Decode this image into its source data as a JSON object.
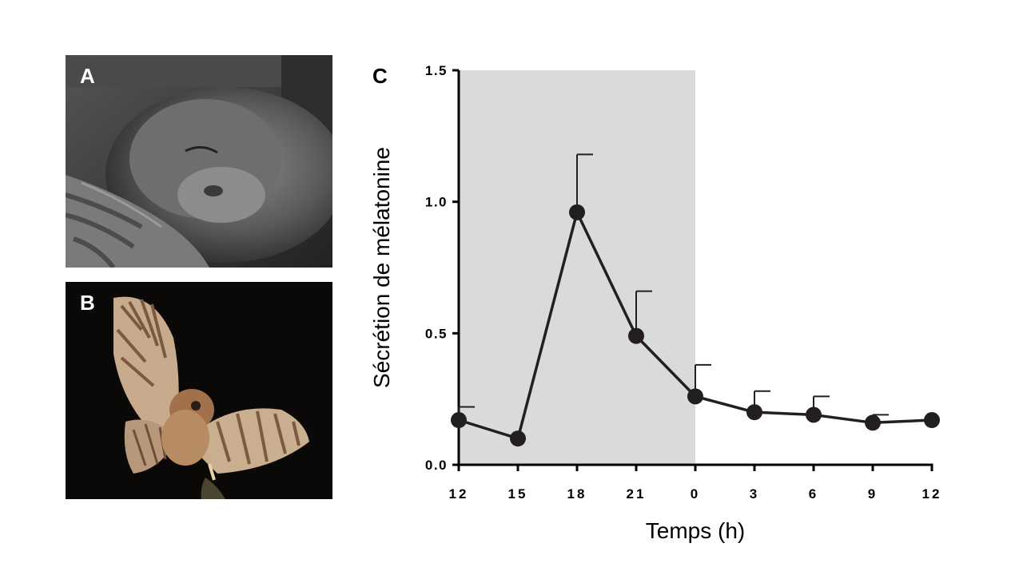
{
  "panels": {
    "a_label": "A",
    "b_label": "B",
    "c_label": "C"
  },
  "photos": {
    "a": "sleeping-macaque-photo",
    "b": "owl-in-flight-photo"
  },
  "colors": {
    "night_shade": "#d9dadc",
    "line": "#231f20",
    "axis": "#000000"
  },
  "chart_data": {
    "type": "line",
    "title": "",
    "xlabel": "Temps (h)",
    "ylabel": "Sécrétion de mélatonine",
    "ylim": [
      0,
      1.5
    ],
    "yticks": [
      "0.0",
      "0.5",
      "1.0",
      "1.5"
    ],
    "x_tick_labels": [
      "12",
      "15",
      "18",
      "21",
      "0",
      "3",
      "6",
      "9",
      "12"
    ],
    "night_shading": {
      "from_tick": "12",
      "to_tick": "0"
    },
    "grid": false,
    "legend": "none",
    "series": [
      {
        "points": [
          {
            "x": "12",
            "y": 0.17,
            "err": 0.05
          },
          {
            "x": "15",
            "y": 0.1,
            "err": 0.0
          },
          {
            "x": "18",
            "y": 0.96,
            "err": 0.22
          },
          {
            "x": "21",
            "y": 0.49,
            "err": 0.17
          },
          {
            "x": "0",
            "y": 0.26,
            "err": 0.12
          },
          {
            "x": "3",
            "y": 0.2,
            "err": 0.08
          },
          {
            "x": "6",
            "y": 0.19,
            "err": 0.07
          },
          {
            "x": "9",
            "y": 0.16,
            "err": 0.03
          },
          {
            "x": "12",
            "y": 0.17,
            "err": 0.0
          }
        ]
      }
    ]
  }
}
